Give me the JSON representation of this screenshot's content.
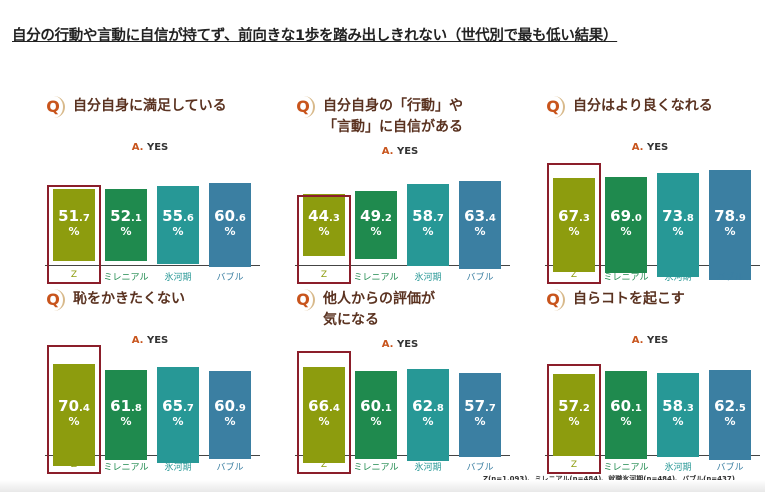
{
  "title": "自分の行動や言動に自信が持てず、前向きな1歩を踏み出しきれない（世代別で最も低い結果）",
  "q_icon": "Q",
  "answer_prefix": "A.",
  "answer": "YES",
  "footnote": "Z(n=1,093)、ミレニアル(n=484)、就職氷河期(n=484)、バブル(n=437)",
  "colors": {
    "Z": "#8d9c0e",
    "ミレニアル": "#1f8a4e",
    "氷河期": "#279896",
    "バブル": "#3b7fa2",
    "highlight": "#8b1e2a"
  },
  "chart_data": [
    {
      "type": "bar",
      "title": "自分自身に満足している",
      "categories": [
        "Z",
        "ミレニアル",
        "氷河期",
        "バブル"
      ],
      "values": [
        51.7,
        52.1,
        55.6,
        60.6
      ],
      "unit": "%"
    },
    {
      "type": "bar",
      "title": "自分自身の「行動」や\n「言動」に自信がある",
      "categories": [
        "Z",
        "ミレニアル",
        "氷河期",
        "バブル"
      ],
      "values": [
        44.3,
        49.2,
        58.7,
        63.4
      ],
      "unit": "%"
    },
    {
      "type": "bar",
      "title": "自分はより良くなれる",
      "categories": [
        "Z",
        "ミレニアル",
        "氷河期",
        "バブル"
      ],
      "values": [
        67.3,
        69.0,
        73.8,
        78.9
      ],
      "unit": "%"
    },
    {
      "type": "bar",
      "title": "恥をかきたくない",
      "categories": [
        "Z",
        "ミレニアル",
        "氷河期",
        "バブル"
      ],
      "values": [
        70.4,
        61.8,
        65.7,
        60.9
      ],
      "unit": "%"
    },
    {
      "type": "bar",
      "title": "他人からの評価が\n気になる",
      "categories": [
        "Z",
        "ミレニアル",
        "氷河期",
        "バブル"
      ],
      "values": [
        66.4,
        60.1,
        62.8,
        57.7
      ],
      "unit": "%"
    },
    {
      "type": "bar",
      "title": "自らコトを起こす",
      "categories": [
        "Z",
        "ミレニアル",
        "氷河期",
        "バブル"
      ],
      "values": [
        57.2,
        60.1,
        58.3,
        62.5
      ],
      "unit": "%"
    }
  ]
}
